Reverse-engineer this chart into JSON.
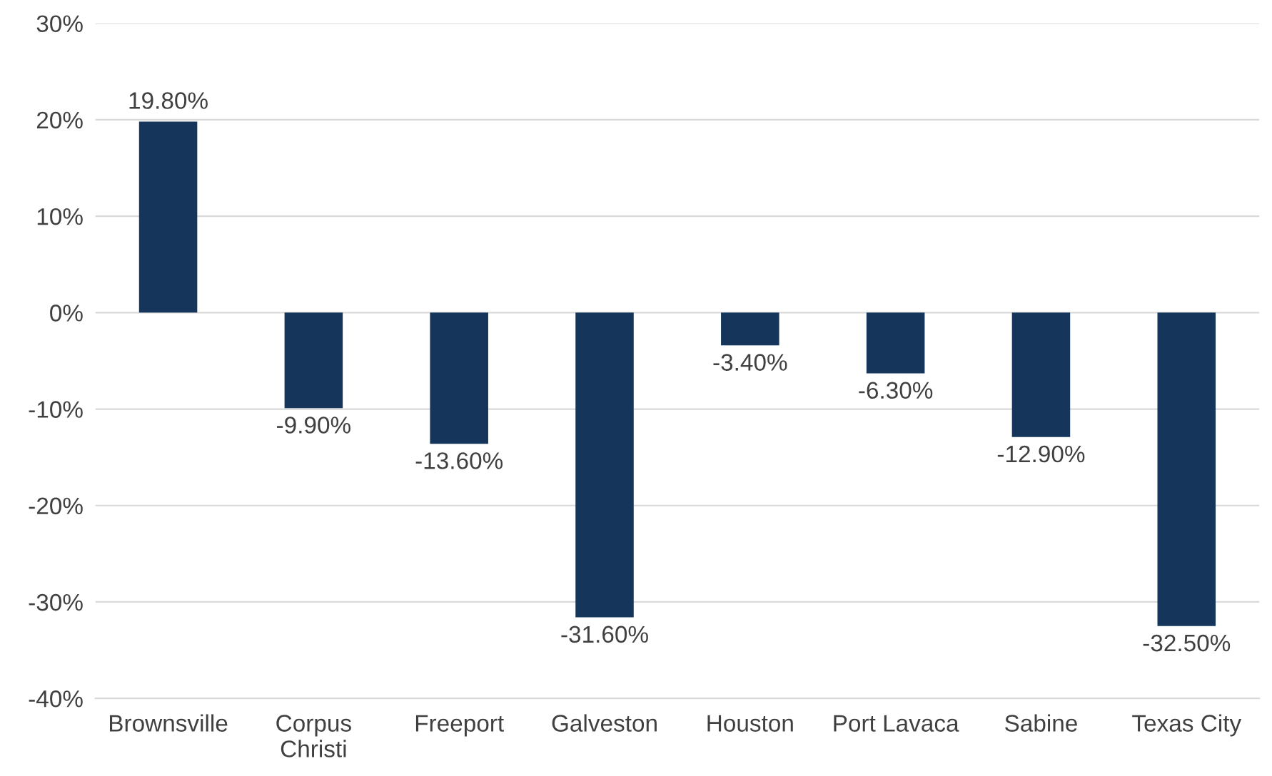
{
  "chart_data": {
    "type": "bar",
    "categories": [
      "Brownsville",
      "Corpus\nChristi",
      "Freeport",
      "Galveston",
      "Houston",
      "Port Lavaca",
      "Sabine",
      "Texas City"
    ],
    "values": [
      19.8,
      -9.9,
      -13.6,
      -31.6,
      -3.4,
      -6.3,
      -12.9,
      -32.5
    ],
    "value_labels": [
      "19.80%",
      "-9.90%",
      "-13.60%",
      "-31.60%",
      "-3.40%",
      "-6.30%",
      "-12.90%",
      "-32.50%"
    ],
    "color": "#15365a",
    "ylim": [
      -40,
      30
    ],
    "yticks": [
      {
        "value": -40,
        "label": "-40%"
      },
      {
        "value": -30,
        "label": "-30%"
      },
      {
        "value": -20,
        "label": "-20%"
      },
      {
        "value": -10,
        "label": "-10%"
      },
      {
        "value": 0,
        "label": "0%"
      },
      {
        "value": 10,
        "label": "10%"
      },
      {
        "value": 20,
        "label": "20%"
      },
      {
        "value": 30,
        "label": "30%"
      }
    ],
    "grid": "y",
    "legend": false
  }
}
